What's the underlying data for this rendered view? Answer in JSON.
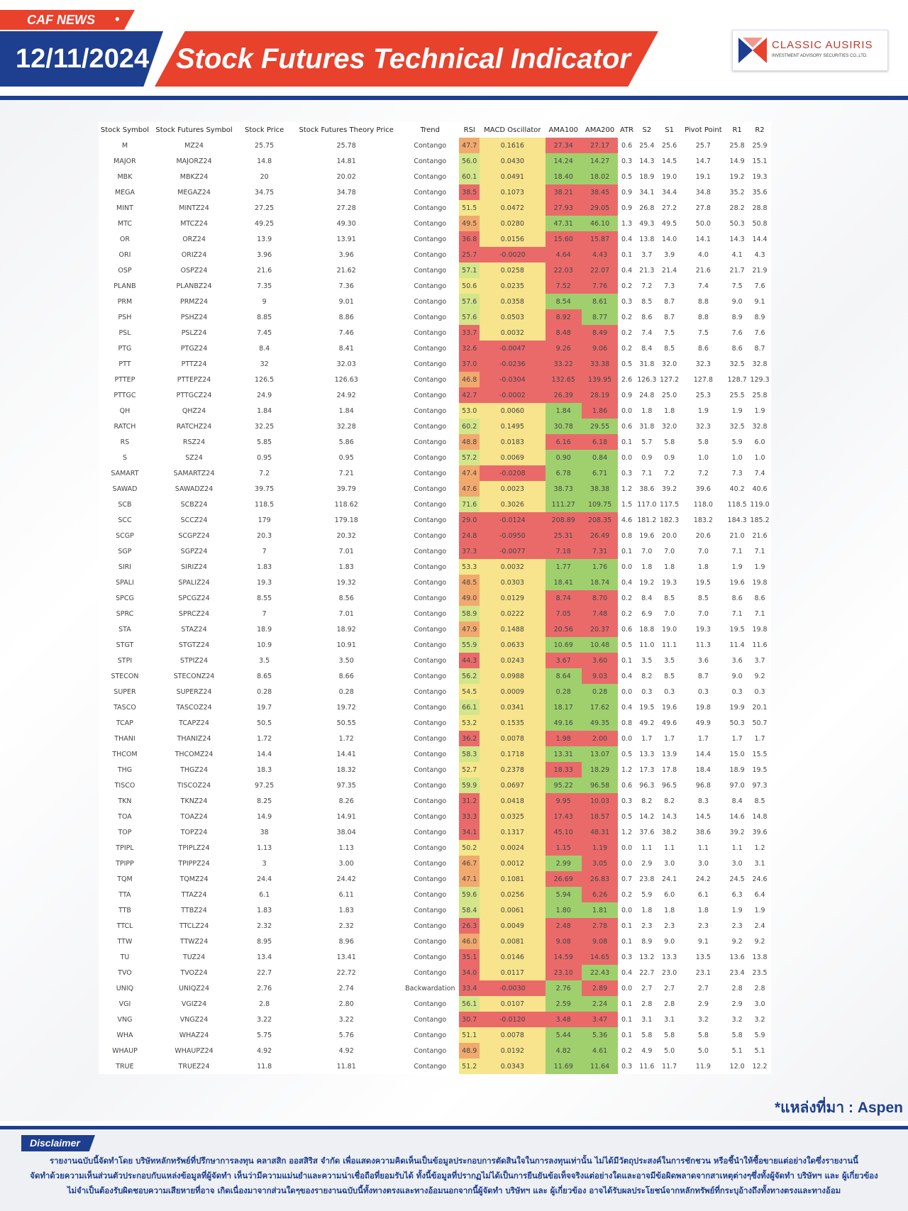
{
  "header": {
    "tag": "CAF NEWS",
    "tag_dot": "•",
    "date": "12/11/2024",
    "title": "Stock Futures Technical Indicator",
    "logo_name": "CLASSIC AUSIRIS",
    "logo_sub": "INVESTMENT ADVISORY SECURITIES CO.,LTD."
  },
  "colors": {
    "brand_blue": "#1e3f8f",
    "brand_red": "#e8412c",
    "rsi_low": "#ea6a6a",
    "rsi_mid": "#f5e88a",
    "ama_up": "#9fd06d",
    "ama_down": "#ea6a6a"
  },
  "table": {
    "columns": [
      "Stock Symbol",
      "Stock Futures Symbol",
      "Stock Price",
      "Stock Futures Theory Price",
      "Trend",
      "RSI",
      "MACD Oscillator",
      "AMA100",
      "AMA200",
      "ATR",
      "S2",
      "S1",
      "Pivot Point",
      "R1",
      "R2"
    ],
    "rows": [
      [
        "M",
        "MZ24",
        "25.75",
        "25.78",
        "Contango",
        "47.7",
        "0.1616",
        "27.34",
        "27.17",
        "0.6",
        "25.4",
        "25.6",
        "25.7",
        "25.8",
        "25.9"
      ],
      [
        "MAJOR",
        "MAJORZ24",
        "14.8",
        "14.81",
        "Contango",
        "56.0",
        "0.0430",
        "14.24",
        "14.27",
        "0.3",
        "14.3",
        "14.5",
        "14.7",
        "14.9",
        "15.1"
      ],
      [
        "MBK",
        "MBKZ24",
        "20",
        "20.02",
        "Contango",
        "60.1",
        "0.0491",
        "18.40",
        "18.02",
        "0.5",
        "18.9",
        "19.0",
        "19.1",
        "19.2",
        "19.3"
      ],
      [
        "MEGA",
        "MEGAZ24",
        "34.75",
        "34.78",
        "Contango",
        "38.5",
        "0.1073",
        "38.21",
        "38.45",
        "0.9",
        "34.1",
        "34.4",
        "34.8",
        "35.2",
        "35.6"
      ],
      [
        "MINT",
        "MINTZ24",
        "27.25",
        "27.28",
        "Contango",
        "51.5",
        "0.0472",
        "27.93",
        "29.05",
        "0.9",
        "26.8",
        "27.2",
        "27.8",
        "28.2",
        "28.8"
      ],
      [
        "MTC",
        "MTCZ24",
        "49.25",
        "49.30",
        "Contango",
        "49.5",
        "0.0280",
        "47.31",
        "46.10",
        "1.3",
        "49.3",
        "49.5",
        "50.0",
        "50.3",
        "50.8"
      ],
      [
        "OR",
        "ORZ24",
        "13.9",
        "13.91",
        "Contango",
        "36.8",
        "0.0156",
        "15.60",
        "15.87",
        "0.4",
        "13.8",
        "14.0",
        "14.1",
        "14.3",
        "14.4"
      ],
      [
        "ORI",
        "ORIZ24",
        "3.96",
        "3.96",
        "Contango",
        "25.7",
        "-0.0020",
        "4.64",
        "4.43",
        "0.1",
        "3.7",
        "3.9",
        "4.0",
        "4.1",
        "4.3"
      ],
      [
        "OSP",
        "OSPZ24",
        "21.6",
        "21.62",
        "Contango",
        "57.1",
        "0.0258",
        "22.03",
        "22.07",
        "0.4",
        "21.3",
        "21.4",
        "21.6",
        "21.7",
        "21.9"
      ],
      [
        "PLANB",
        "PLANBZ24",
        "7.35",
        "7.36",
        "Contango",
        "50.6",
        "0.0235",
        "7.52",
        "7.76",
        "0.2",
        "7.2",
        "7.3",
        "7.4",
        "7.5",
        "7.6"
      ],
      [
        "PRM",
        "PRMZ24",
        "9",
        "9.01",
        "Contango",
        "57.6",
        "0.0358",
        "8.54",
        "8.61",
        "0.3",
        "8.5",
        "8.7",
        "8.8",
        "9.0",
        "9.1"
      ],
      [
        "PSH",
        "PSHZ24",
        "8.85",
        "8.86",
        "Contango",
        "57.6",
        "0.0503",
        "8.92",
        "8.77",
        "0.2",
        "8.6",
        "8.7",
        "8.8",
        "8.9",
        "8.9"
      ],
      [
        "PSL",
        "PSLZ24",
        "7.45",
        "7.46",
        "Contango",
        "33.7",
        "0.0032",
        "8.48",
        "8.49",
        "0.2",
        "7.4",
        "7.5",
        "7.5",
        "7.6",
        "7.6"
      ],
      [
        "PTG",
        "PTGZ24",
        "8.4",
        "8.41",
        "Contango",
        "32.6",
        "-0.0047",
        "9.26",
        "9.06",
        "0.2",
        "8.4",
        "8.5",
        "8.6",
        "8.6",
        "8.7"
      ],
      [
        "PTT",
        "PTTZ24",
        "32",
        "32.03",
        "Contango",
        "37.0",
        "-0.0236",
        "33.22",
        "33.38",
        "0.5",
        "31.8",
        "32.0",
        "32.3",
        "32.5",
        "32.8"
      ],
      [
        "PTTEP",
        "PTTEPZ24",
        "126.5",
        "126.63",
        "Contango",
        "46.8",
        "-0.0304",
        "132.65",
        "139.95",
        "2.6",
        "126.3",
        "127.2",
        "127.8",
        "128.7",
        "129.3"
      ],
      [
        "PTTGC",
        "PTTGCZ24",
        "24.9",
        "24.92",
        "Contango",
        "42.7",
        "-0.0002",
        "26.39",
        "28.19",
        "0.9",
        "24.8",
        "25.0",
        "25.3",
        "25.5",
        "25.8"
      ],
      [
        "QH",
        "QHZ24",
        "1.84",
        "1.84",
        "Contango",
        "53.0",
        "0.0060",
        "1.84",
        "1.86",
        "0.0",
        "1.8",
        "1.8",
        "1.9",
        "1.9",
        "1.9"
      ],
      [
        "RATCH",
        "RATCHZ24",
        "32.25",
        "32.28",
        "Contango",
        "60.2",
        "0.1495",
        "30.78",
        "29.55",
        "0.6",
        "31.8",
        "32.0",
        "32.3",
        "32.5",
        "32.8"
      ],
      [
        "RS",
        "RSZ24",
        "5.85",
        "5.86",
        "Contango",
        "48.8",
        "0.0183",
        "6.16",
        "6.18",
        "0.1",
        "5.7",
        "5.8",
        "5.8",
        "5.9",
        "6.0"
      ],
      [
        "S",
        "SZ24",
        "0.95",
        "0.95",
        "Contango",
        "57.2",
        "0.0069",
        "0.90",
        "0.84",
        "0.0",
        "0.9",
        "0.9",
        "1.0",
        "1.0",
        "1.0"
      ],
      [
        "SAMART",
        "SAMARTZ24",
        "7.2",
        "7.21",
        "Contango",
        "47.4",
        "-0.0208",
        "6.78",
        "6.71",
        "0.3",
        "7.1",
        "7.2",
        "7.2",
        "7.3",
        "7.4"
      ],
      [
        "SAWAD",
        "SAWADZ24",
        "39.75",
        "39.79",
        "Contango",
        "47.6",
        "0.0023",
        "38.73",
        "38.38",
        "1.2",
        "38.6",
        "39.2",
        "39.6",
        "40.2",
        "40.6"
      ],
      [
        "SCB",
        "SCBZ24",
        "118.5",
        "118.62",
        "Contango",
        "71.6",
        "0.3026",
        "111.27",
        "109.75",
        "1.5",
        "117.0",
        "117.5",
        "118.0",
        "118.5",
        "119.0"
      ],
      [
        "SCC",
        "SCCZ24",
        "179",
        "179.18",
        "Contango",
        "29.0",
        "-0.0124",
        "208.89",
        "208.35",
        "4.6",
        "181.2",
        "182.3",
        "183.2",
        "184.3",
        "185.2"
      ],
      [
        "SCGP",
        "SCGPZ24",
        "20.3",
        "20.32",
        "Contango",
        "24.8",
        "-0.0950",
        "25.31",
        "26.49",
        "0.8",
        "19.6",
        "20.0",
        "20.6",
        "21.0",
        "21.6"
      ],
      [
        "SGP",
        "SGPZ24",
        "7",
        "7.01",
        "Contango",
        "37.3",
        "-0.0077",
        "7.18",
        "7.31",
        "0.1",
        "7.0",
        "7.0",
        "7.0",
        "7.1",
        "7.1"
      ],
      [
        "SIRI",
        "SIRIZ24",
        "1.83",
        "1.83",
        "Contango",
        "53.3",
        "0.0032",
        "1.77",
        "1.76",
        "0.0",
        "1.8",
        "1.8",
        "1.8",
        "1.9",
        "1.9"
      ],
      [
        "SPALI",
        "SPALIZ24",
        "19.3",
        "19.32",
        "Contango",
        "48.5",
        "0.0303",
        "18.41",
        "18.74",
        "0.4",
        "19.2",
        "19.3",
        "19.5",
        "19.6",
        "19.8"
      ],
      [
        "SPCG",
        "SPCGZ24",
        "8.55",
        "8.56",
        "Contango",
        "49.0",
        "0.0129",
        "8.74",
        "8.70",
        "0.2",
        "8.4",
        "8.5",
        "8.5",
        "8.6",
        "8.6"
      ],
      [
        "SPRC",
        "SPRCZ24",
        "7",
        "7.01",
        "Contango",
        "58.9",
        "0.0222",
        "7.05",
        "7.48",
        "0.2",
        "6.9",
        "7.0",
        "7.0",
        "7.1",
        "7.1"
      ],
      [
        "STA",
        "STAZ24",
        "18.9",
        "18.92",
        "Contango",
        "47.9",
        "0.1488",
        "20.56",
        "20.37",
        "0.6",
        "18.8",
        "19.0",
        "19.3",
        "19.5",
        "19.8"
      ],
      [
        "STGT",
        "STGTZ24",
        "10.9",
        "10.91",
        "Contango",
        "55.9",
        "0.0633",
        "10.69",
        "10.48",
        "0.5",
        "11.0",
        "11.1",
        "11.3",
        "11.4",
        "11.6"
      ],
      [
        "STPI",
        "STPIZ24",
        "3.5",
        "3.50",
        "Contango",
        "44.3",
        "0.0243",
        "3.67",
        "3.60",
        "0.1",
        "3.5",
        "3.5",
        "3.6",
        "3.6",
        "3.7"
      ],
      [
        "STECON",
        "STECONZ24",
        "8.65",
        "8.66",
        "Contango",
        "56.2",
        "0.0988",
        "8.64",
        "9.03",
        "0.4",
        "8.2",
        "8.5",
        "8.7",
        "9.0",
        "9.2"
      ],
      [
        "SUPER",
        "SUPERZ24",
        "0.28",
        "0.28",
        "Contango",
        "54.5",
        "0.0009",
        "0.28",
        "0.28",
        "0.0",
        "0.3",
        "0.3",
        "0.3",
        "0.3",
        "0.3"
      ],
      [
        "TASCO",
        "TASCOZ24",
        "19.7",
        "19.72",
        "Contango",
        "66.1",
        "0.0341",
        "18.17",
        "17.62",
        "0.4",
        "19.5",
        "19.6",
        "19.8",
        "19.9",
        "20.1"
      ],
      [
        "TCAP",
        "TCAPZ24",
        "50.5",
        "50.55",
        "Contango",
        "53.2",
        "0.1535",
        "49.16",
        "49.35",
        "0.8",
        "49.2",
        "49.6",
        "49.9",
        "50.3",
        "50.7"
      ],
      [
        "THANI",
        "THANIZ24",
        "1.72",
        "1.72",
        "Contango",
        "36.2",
        "0.0078",
        "1.98",
        "2.00",
        "0.0",
        "1.7",
        "1.7",
        "1.7",
        "1.7",
        "1.7"
      ],
      [
        "THCOM",
        "THCOMZ24",
        "14.4",
        "14.41",
        "Contango",
        "58.3",
        "0.1718",
        "13.31",
        "13.07",
        "0.5",
        "13.3",
        "13.9",
        "14.4",
        "15.0",
        "15.5"
      ],
      [
        "THG",
        "THGZ24",
        "18.3",
        "18.32",
        "Contango",
        "52.7",
        "0.2378",
        "18.33",
        "18.29",
        "1.2",
        "17.3",
        "17.8",
        "18.4",
        "18.9",
        "19.5"
      ],
      [
        "TISCO",
        "TISCOZ24",
        "97.25",
        "97.35",
        "Contango",
        "59.9",
        "0.0697",
        "95.22",
        "96.58",
        "0.6",
        "96.3",
        "96.5",
        "96.8",
        "97.0",
        "97.3"
      ],
      [
        "TKN",
        "TKNZ24",
        "8.25",
        "8.26",
        "Contango",
        "31.2",
        "0.0418",
        "9.95",
        "10.03",
        "0.3",
        "8.2",
        "8.2",
        "8.3",
        "8.4",
        "8.5"
      ],
      [
        "TOA",
        "TOAZ24",
        "14.9",
        "14.91",
        "Contango",
        "33.3",
        "0.0325",
        "17.43",
        "18.57",
        "0.5",
        "14.2",
        "14.3",
        "14.5",
        "14.6",
        "14.8"
      ],
      [
        "TOP",
        "TOPZ24",
        "38",
        "38.04",
        "Contango",
        "34.1",
        "0.1317",
        "45.10",
        "48.31",
        "1.2",
        "37.6",
        "38.2",
        "38.6",
        "39.2",
        "39.6"
      ],
      [
        "TPIPL",
        "TPIPLZ24",
        "1.13",
        "1.13",
        "Contango",
        "50.2",
        "0.0024",
        "1.15",
        "1.19",
        "0.0",
        "1.1",
        "1.1",
        "1.1",
        "1.1",
        "1.2"
      ],
      [
        "TPIPP",
        "TPIPPZ24",
        "3",
        "3.00",
        "Contango",
        "46.7",
        "0.0012",
        "2.99",
        "3.05",
        "0.0",
        "2.9",
        "3.0",
        "3.0",
        "3.0",
        "3.1"
      ],
      [
        "TQM",
        "TQMZ24",
        "24.4",
        "24.42",
        "Contango",
        "47.1",
        "0.1081",
        "26.69",
        "26.83",
        "0.7",
        "23.8",
        "24.1",
        "24.2",
        "24.5",
        "24.6"
      ],
      [
        "TTA",
        "TTAZ24",
        "6.1",
        "6.11",
        "Contango",
        "59.6",
        "0.0256",
        "5.94",
        "6.26",
        "0.2",
        "5.9",
        "6.0",
        "6.1",
        "6.3",
        "6.4"
      ],
      [
        "TTB",
        "TTBZ24",
        "1.83",
        "1.83",
        "Contango",
        "58.4",
        "0.0061",
        "1.80",
        "1.81",
        "0.0",
        "1.8",
        "1.8",
        "1.8",
        "1.9",
        "1.9"
      ],
      [
        "TTCL",
        "TTCLZ24",
        "2.32",
        "2.32",
        "Contango",
        "26.3",
        "0.0049",
        "2.48",
        "2.78",
        "0.1",
        "2.3",
        "2.3",
        "2.3",
        "2.3",
        "2.4"
      ],
      [
        "TTW",
        "TTWZ24",
        "8.95",
        "8.96",
        "Contango",
        "46.0",
        "0.0081",
        "9.08",
        "9.08",
        "0.1",
        "8.9",
        "9.0",
        "9.1",
        "9.2",
        "9.2"
      ],
      [
        "TU",
        "TUZ24",
        "13.4",
        "13.41",
        "Contango",
        "35.1",
        "0.0146",
        "14.59",
        "14.65",
        "0.3",
        "13.2",
        "13.3",
        "13.5",
        "13.6",
        "13.8"
      ],
      [
        "TVO",
        "TVOZ24",
        "22.7",
        "22.72",
        "Contango",
        "34.0",
        "0.0117",
        "23.10",
        "22.43",
        "0.4",
        "22.7",
        "23.0",
        "23.1",
        "23.4",
        "23.5"
      ],
      [
        "UNIQ",
        "UNIQZ24",
        "2.76",
        "2.74",
        "Backwardation",
        "33.4",
        "-0.0030",
        "2.76",
        "2.89",
        "0.0",
        "2.7",
        "2.7",
        "2.7",
        "2.8",
        "2.8"
      ],
      [
        "VGI",
        "VGIZ24",
        "2.8",
        "2.80",
        "Contango",
        "56.1",
        "0.0107",
        "2.59",
        "2.24",
        "0.1",
        "2.8",
        "2.8",
        "2.9",
        "2.9",
        "3.0"
      ],
      [
        "VNG",
        "VNGZ24",
        "3.22",
        "3.22",
        "Contango",
        "30.7",
        "-0.0120",
        "3.48",
        "3.47",
        "0.1",
        "3.1",
        "3.1",
        "3.2",
        "3.2",
        "3.2"
      ],
      [
        "WHA",
        "WHAZ24",
        "5.75",
        "5.76",
        "Contango",
        "51.1",
        "0.0078",
        "5.44",
        "5.36",
        "0.1",
        "5.8",
        "5.8",
        "5.8",
        "5.8",
        "5.9"
      ],
      [
        "WHAUP",
        "WHAUPZ24",
        "4.92",
        "4.92",
        "Contango",
        "48.9",
        "0.0192",
        "4.82",
        "4.61",
        "0.2",
        "4.9",
        "5.0",
        "5.0",
        "5.1",
        "5.1"
      ],
      [
        "TRUE",
        "TRUEZ24",
        "11.8",
        "11.81",
        "Contango",
        "51.2",
        "0.0343",
        "11.69",
        "11.64",
        "0.3",
        "11.6",
        "11.7",
        "11.9",
        "12.0",
        "12.2"
      ]
    ]
  },
  "source": "*แหล่งที่มา : Aspen",
  "disclaimer": {
    "title": "Disclaimer",
    "lines": [
      "รายงานฉบับนี้จัดทำโดย บริษัทหลักทรัพย์ที่ปรึกษาการลงทุน คลาสสิก ออสสิริส จำกัด  เพื่อแสดงความคิดเห็นเป็นข้อมูลประกอบการตัดสินใจในการลงทุนเท่านั้น ไม่ได้มีวัตถุประสงค์ในการชักชวน หรือชี้นำให้ซื้อขายแต่อย่างใดซึ่งรายงานนี้",
      "จัดทำด้วยความเห็นส่วนตัวประกอบกับแหล่งข้อมูลที่ผู้จัดทำ เห็นว่ามีความแม่นยำและความน่าเชื่อถือที่ยอมรับได้ ทั้งนี้ข้อมูลที่ปรากฏไม่ได้เป็นการยืนยันข้อเท็จจริงแต่อย่างใดและอาจมีข้อผิดพลาดจากสาเหตุต่างๆซึ่งทั้งผู้จัดทำ  บริษัทฯ  และ  ผู้เกี่ยวข้อง",
      "ไม่จำเป็นต้องรับผิดชอบความเสียหายที่อาจ เกิดเนื่องมาจากส่วนใดๆของรายงานฉบับนี้ทั้งทางตรงและทางอ้อมนอกจากนี้ผู้จัดทำ บริษัทฯ และ ผู้เกี่ยวข้อง  อาจได้รับผลประโยชน์จากหลักทรัพย์ที่กระบุอ้างถึงทั้งทางตรงและทางอ้อม"
    ]
  }
}
